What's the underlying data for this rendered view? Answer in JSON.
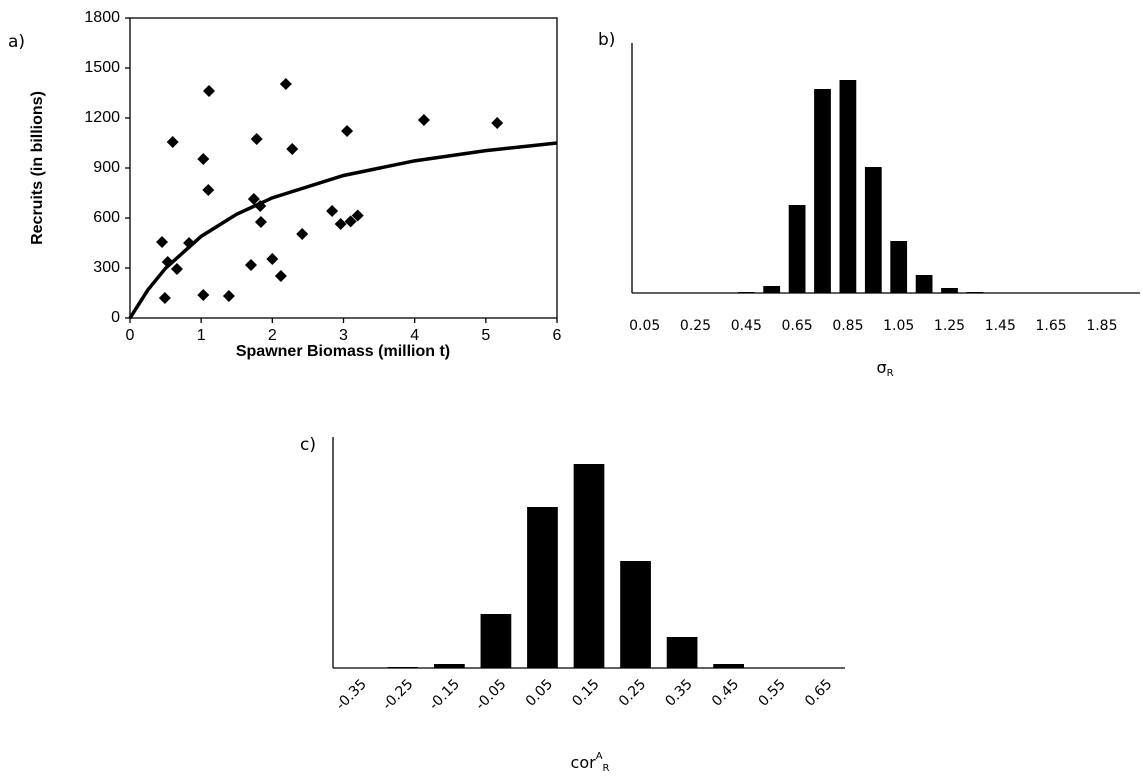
{
  "chart_data": [
    {
      "type": "scatter",
      "label": "a)",
      "xlabel": "Spawner Biomass (million t)",
      "ylabel": "Recruits (in billions)",
      "xlim": [
        0,
        6
      ],
      "xticks": [
        0,
        1,
        2,
        3,
        4,
        5,
        6
      ],
      "ylim": [
        0,
        1800
      ],
      "yticks": [
        0,
        300,
        600,
        900,
        1200,
        1500,
        1800
      ],
      "series": [
        {
          "type": "scatter",
          "color": "#000000",
          "x": [
            0.45,
            0.49,
            0.53,
            0.6,
            0.66,
            0.83,
            1.03,
            1.03,
            1.1,
            1.11,
            1.39,
            1.7,
            1.74,
            1.78,
            1.83,
            1.84,
            2.0,
            2.12,
            2.19,
            2.28,
            2.42,
            2.84,
            2.96,
            3.05,
            3.1,
            3.2,
            4.13,
            5.16
          ],
          "values": [
            456,
            120,
            336,
            1056,
            294,
            450,
            954,
            138,
            768,
            1362,
            132,
            318,
            714,
            1074,
            672,
            576,
            354,
            252,
            1404,
            1014,
            504,
            642,
            564,
            1122,
            580,
            615,
            1188,
            1170
          ]
        },
        {
          "type": "line",
          "color": "#000000",
          "x": [
            0,
            0.25,
            0.5,
            1,
            1.5,
            2,
            3,
            4,
            5,
            6
          ],
          "values": [
            0,
            168,
            299,
            490,
            623,
            721,
            855,
            943,
            1004,
            1050
          ]
        }
      ]
    },
    {
      "type": "bar",
      "label": "b)",
      "xlabel": "σ",
      "xlabel_sub": "R",
      "color": "#000000",
      "categories": [
        "0.05",
        null,
        "0.25",
        null,
        "0.45",
        null,
        "0.65",
        null,
        "0.85",
        null,
        "1.05",
        null,
        "1.25",
        null,
        "1.45",
        null,
        "1.65",
        null,
        "1.85",
        null
      ],
      "values": [
        0,
        0,
        0,
        0,
        1,
        7,
        88,
        204,
        213,
        126,
        52,
        18,
        5,
        1,
        0,
        0,
        0,
        0,
        0,
        0
      ],
      "ylim": [
        0,
        250
      ]
    },
    {
      "type": "bar",
      "label": "c)",
      "xlabel": "cor",
      "xlabel_sup": "A",
      "xlabel_sub": "R",
      "color": "#000000",
      "categories": [
        "-0.35",
        "-0.25",
        "-0.15",
        "-0.05",
        "0.05",
        "0.15",
        "0.25",
        "0.35",
        "0.45",
        "0.55",
        "0.65"
      ],
      "values": [
        0,
        1,
        4,
        54,
        161,
        204,
        107,
        31,
        4,
        0,
        0
      ],
      "ylim": [
        0,
        231
      ]
    }
  ]
}
